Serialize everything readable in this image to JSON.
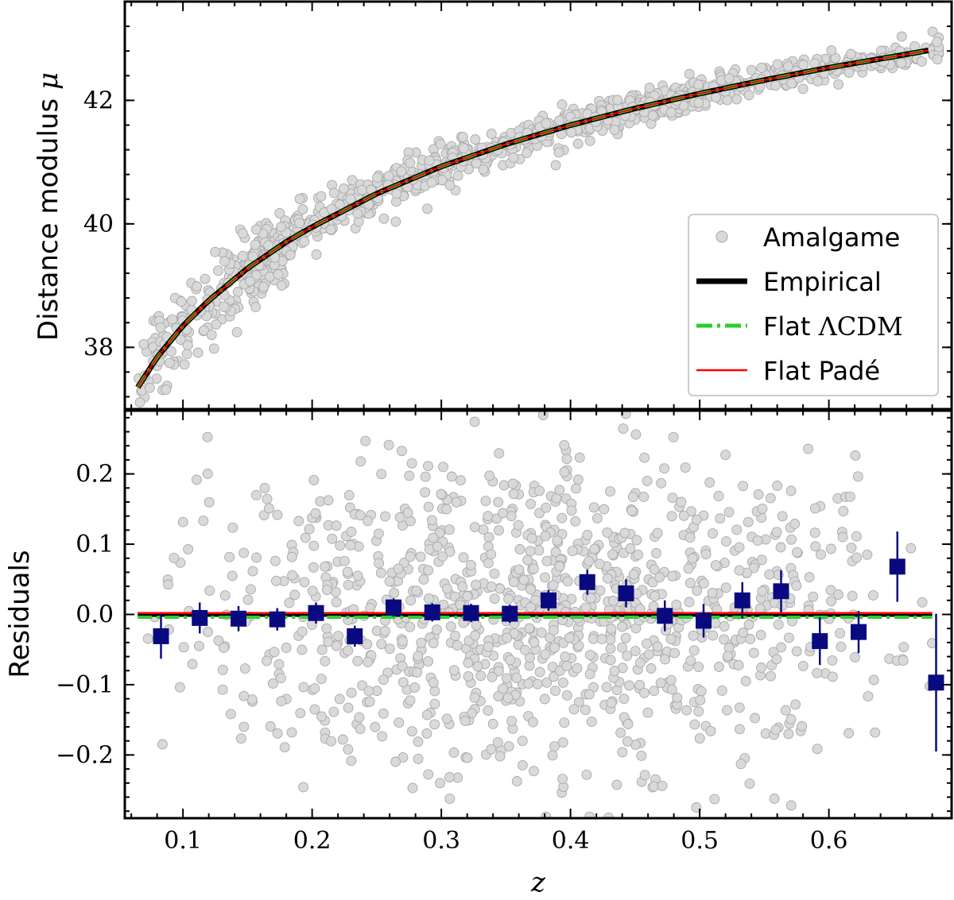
{
  "chart_data": [
    {
      "type": "scatter",
      "panel": "top",
      "xlabel": "z",
      "ylabel": "Distance modulus",
      "ylabel_symbol": "μ",
      "xlim": [
        0.055,
        0.695
      ],
      "ylim": [
        37.0,
        43.6
      ],
      "yticks": [
        38,
        40,
        42
      ],
      "ytick_labels": [
        "38",
        "40",
        "42"
      ],
      "grid": false,
      "legend_position": "lower-right",
      "legend": [
        {
          "label": "Amalgame",
          "symbol": "",
          "style": "marker",
          "color": "#d9d9d9"
        },
        {
          "label": "Empirical",
          "symbol": "",
          "style": "solid-thick",
          "color": "#000000"
        },
        {
          "label": "Flat ",
          "symbol": "ΛCDM",
          "style": "dashdot",
          "color": "#2ecc2e"
        },
        {
          "label": "Flat Padé",
          "symbol": "",
          "style": "solid-thin",
          "color": "#ff0000"
        }
      ],
      "model_curve": {
        "x": [
          0.065,
          0.08,
          0.1,
          0.12,
          0.15,
          0.18,
          0.2,
          0.25,
          0.3,
          0.35,
          0.4,
          0.45,
          0.5,
          0.55,
          0.6,
          0.65,
          0.68
        ],
        "y": [
          37.35,
          37.84,
          38.35,
          38.76,
          39.28,
          39.71,
          39.95,
          40.49,
          40.93,
          41.29,
          41.6,
          41.87,
          42.11,
          42.33,
          42.53,
          42.71,
          42.82
        ]
      },
      "series": [
        {
          "name": "Amalgame",
          "kind": "scatter",
          "n_points": 1100,
          "color": "#d9d9d9",
          "scatter_sigma": 0.28
        }
      ]
    },
    {
      "type": "scatter",
      "panel": "bottom",
      "xlabel": "z",
      "ylabel": "Residuals",
      "xlim": [
        0.055,
        0.695
      ],
      "ylim": [
        -0.29,
        0.29
      ],
      "xticks": [
        0.1,
        0.2,
        0.3,
        0.4,
        0.5,
        0.6
      ],
      "xtick_labels": [
        "0.1",
        "0.2",
        "0.3",
        "0.4",
        "0.5",
        "0.6"
      ],
      "yticks": [
        -0.2,
        -0.1,
        0.0,
        0.1,
        0.2
      ],
      "ytick_labels": [
        "−0.2",
        "−0.1",
        "0.0",
        "0.1",
        "0.2"
      ],
      "grid": false,
      "series": [
        {
          "name": "Amalgame",
          "kind": "scatter",
          "n_points": 1100,
          "color": "#d9d9d9"
        },
        {
          "name": "Empirical",
          "kind": "line",
          "x": [
            0.065,
            0.68
          ],
          "y": [
            0.0,
            0.0
          ],
          "color": "#000000"
        },
        {
          "name": "Flat ΛCDM",
          "kind": "line",
          "x": [
            0.065,
            0.68
          ],
          "y": [
            -0.004,
            -0.004
          ],
          "color": "#2ecc2e"
        },
        {
          "name": "Flat Padé",
          "kind": "line",
          "x": [
            0.065,
            0.68
          ],
          "y": [
            0.002,
            0.002
          ],
          "color": "#ff0000"
        },
        {
          "name": "Binned",
          "kind": "errorbar",
          "color": "#0a0a80",
          "x": [
            0.083,
            0.113,
            0.143,
            0.173,
            0.203,
            0.233,
            0.263,
            0.293,
            0.323,
            0.353,
            0.383,
            0.413,
            0.443,
            0.473,
            0.503,
            0.533,
            0.563,
            0.593,
            0.623,
            0.653,
            0.683
          ],
          "y": [
            -0.031,
            -0.005,
            -0.006,
            -0.007,
            0.002,
            -0.031,
            0.01,
            0.003,
            0.002,
            0.001,
            0.02,
            0.046,
            0.03,
            -0.002,
            -0.009,
            0.02,
            0.033,
            -0.038,
            -0.025,
            0.068,
            -0.097
          ],
          "err": [
            0.032,
            0.022,
            0.018,
            0.016,
            0.015,
            0.015,
            0.013,
            0.013,
            0.013,
            0.013,
            0.015,
            0.018,
            0.02,
            0.022,
            0.024,
            0.026,
            0.03,
            0.034,
            0.03,
            0.05,
            0.098
          ]
        }
      ]
    }
  ]
}
